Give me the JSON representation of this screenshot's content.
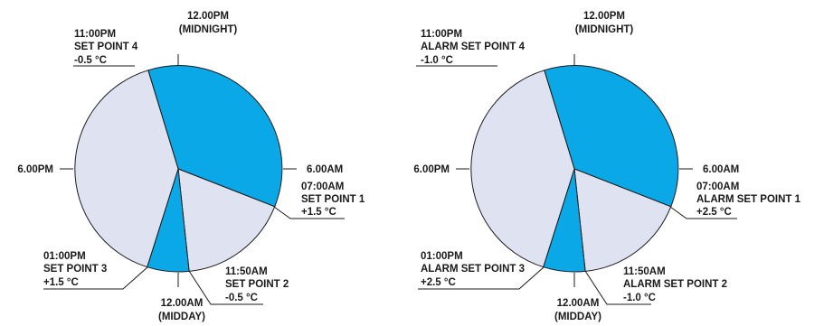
{
  "colors": {
    "zone_active": "#0aa8e6",
    "zone_inactive": "#dfe3f1",
    "outline": "#1a1a1a"
  },
  "charts": [
    {
      "clock_labels": {
        "top": [
          "12.00PM",
          "(MIDNIGHT)"
        ],
        "right": "6.00AM",
        "bottom": [
          "12.00AM",
          "(MIDDAY)"
        ],
        "left": "6.00PM"
      },
      "set_points": [
        {
          "lines": [
            "07:00AM",
            "SET POINT 1",
            "+1.5 °C"
          ]
        },
        {
          "lines": [
            "11:50AM",
            "SET POINT 2",
            "-0.5 °C"
          ]
        },
        {
          "lines": [
            "01:00PM",
            "SET POINT 3",
            "+1.5 °C"
          ]
        },
        {
          "lines": [
            "11:00PM",
            "SET POINT 4",
            "-0.5 °C"
          ]
        }
      ]
    },
    {
      "clock_labels": {
        "top": [
          "12.00PM",
          "(MIDNIGHT)"
        ],
        "right": "6.00AM",
        "bottom": [
          "12.00AM",
          "(MIDDAY)"
        ],
        "left": "6.00PM"
      },
      "set_points": [
        {
          "lines": [
            "07:00AM",
            "ALARM SET POINT 1",
            "+2.5 °C"
          ]
        },
        {
          "lines": [
            "11:50AM",
            "ALARM SET POINT 2",
            "-1.0 °C"
          ]
        },
        {
          "lines": [
            "01:00PM",
            "ALARM SET POINT 3",
            "+2.5 °C"
          ]
        },
        {
          "lines": [
            "11:00PM",
            "ALARM SET POINT 4",
            "-1.0 °C"
          ]
        }
      ]
    }
  ]
}
